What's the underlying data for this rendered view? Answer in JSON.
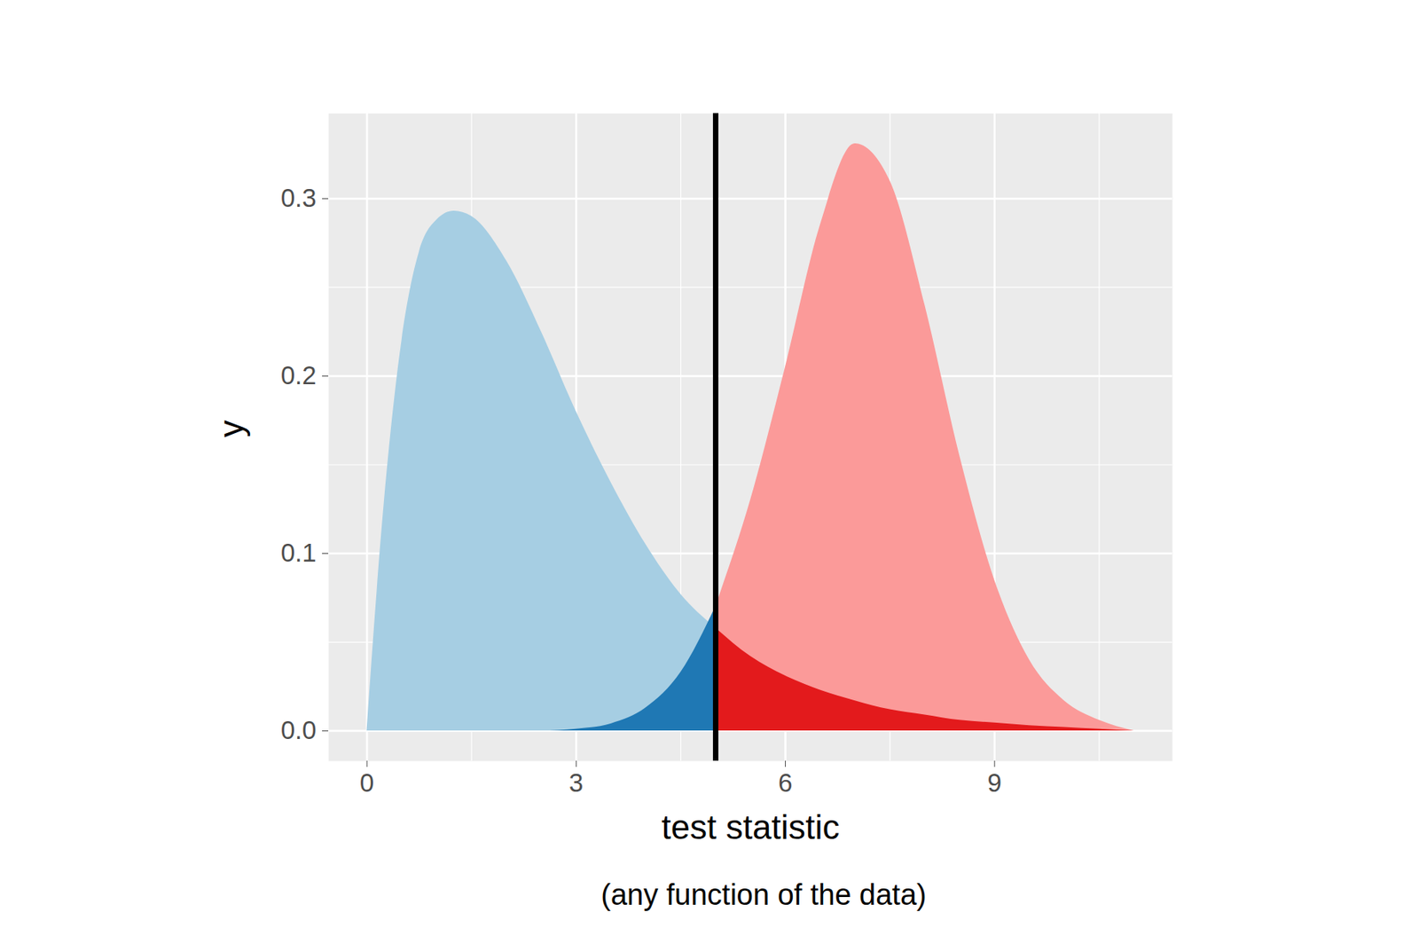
{
  "chart_data": {
    "type": "area",
    "x_label": "test statistic",
    "y_label": "y",
    "caption": "(any function of the data)",
    "x": [
      0,
      0.25,
      0.5,
      0.75,
      1,
      1.25,
      1.5,
      2,
      2.5,
      3,
      3.5,
      4,
      4.5,
      5,
      5.5,
      6,
      6.5,
      7,
      7.5,
      8,
      8.5,
      9,
      9.5,
      10,
      10.5,
      11
    ],
    "series": [
      {
        "colors": [
          "#a6cee3",
          "#e31a1c"
        ],
        "values": [
          0,
          0.13,
          0.22,
          0.27,
          0.288,
          0.293,
          0.29,
          0.265,
          0.225,
          0.18,
          0.14,
          0.105,
          0.077,
          0.058,
          0.042,
          0.031,
          0.023,
          0.017,
          0.012,
          0.009,
          0.006,
          0.0045,
          0.003,
          0.002,
          0.001,
          0
        ]
      },
      {
        "colors": [
          "#fb9a99",
          "#1f78b4"
        ],
        "values": [
          0,
          0,
          0,
          0,
          0,
          0,
          0,
          0,
          0,
          0.001,
          0.004,
          0.013,
          0.033,
          0.07,
          0.13,
          0.205,
          0.285,
          0.331,
          0.31,
          0.24,
          0.155,
          0.085,
          0.04,
          0.017,
          0.006,
          0
        ]
      }
    ],
    "vlines": [
      5
    ],
    "xlim": [
      -0.55,
      11.55
    ],
    "ylim": [
      -0.017,
      0.348
    ],
    "xticks": [
      0,
      3,
      6,
      9
    ],
    "yticks": [
      {
        "value": 0,
        "label": "0.0"
      },
      0.1,
      0.2,
      0.3
    ],
    "grid": true
  }
}
